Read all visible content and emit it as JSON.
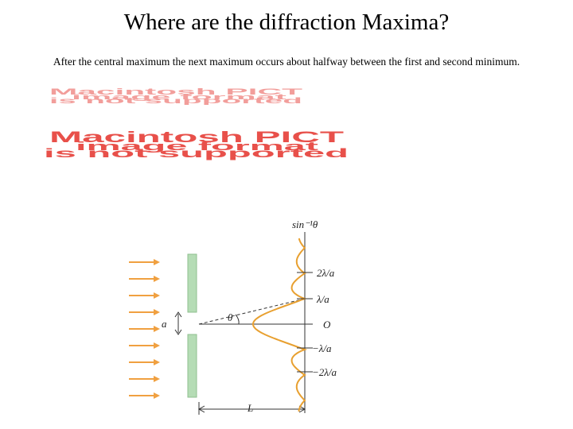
{
  "header": {
    "title": "Where are the diffraction Maxima?"
  },
  "body": {
    "text": "After the central maximum the next maximum occurs about halfway between the first and second minimum."
  },
  "placeholders": [
    {
      "lines": [
        "Macintosh PICT",
        "image format",
        "is not supported"
      ]
    },
    {
      "lines": [
        "Macintosh PICT",
        "image format",
        "is not supported"
      ]
    }
  ],
  "diagram": {
    "axis_label": "sin⁻¹θ",
    "marks": [
      "2λ/a",
      "λ/a",
      "O",
      "−λ/a",
      "−2λ/a"
    ],
    "slit_width": "a",
    "angle": "θ",
    "distance": "L"
  }
}
